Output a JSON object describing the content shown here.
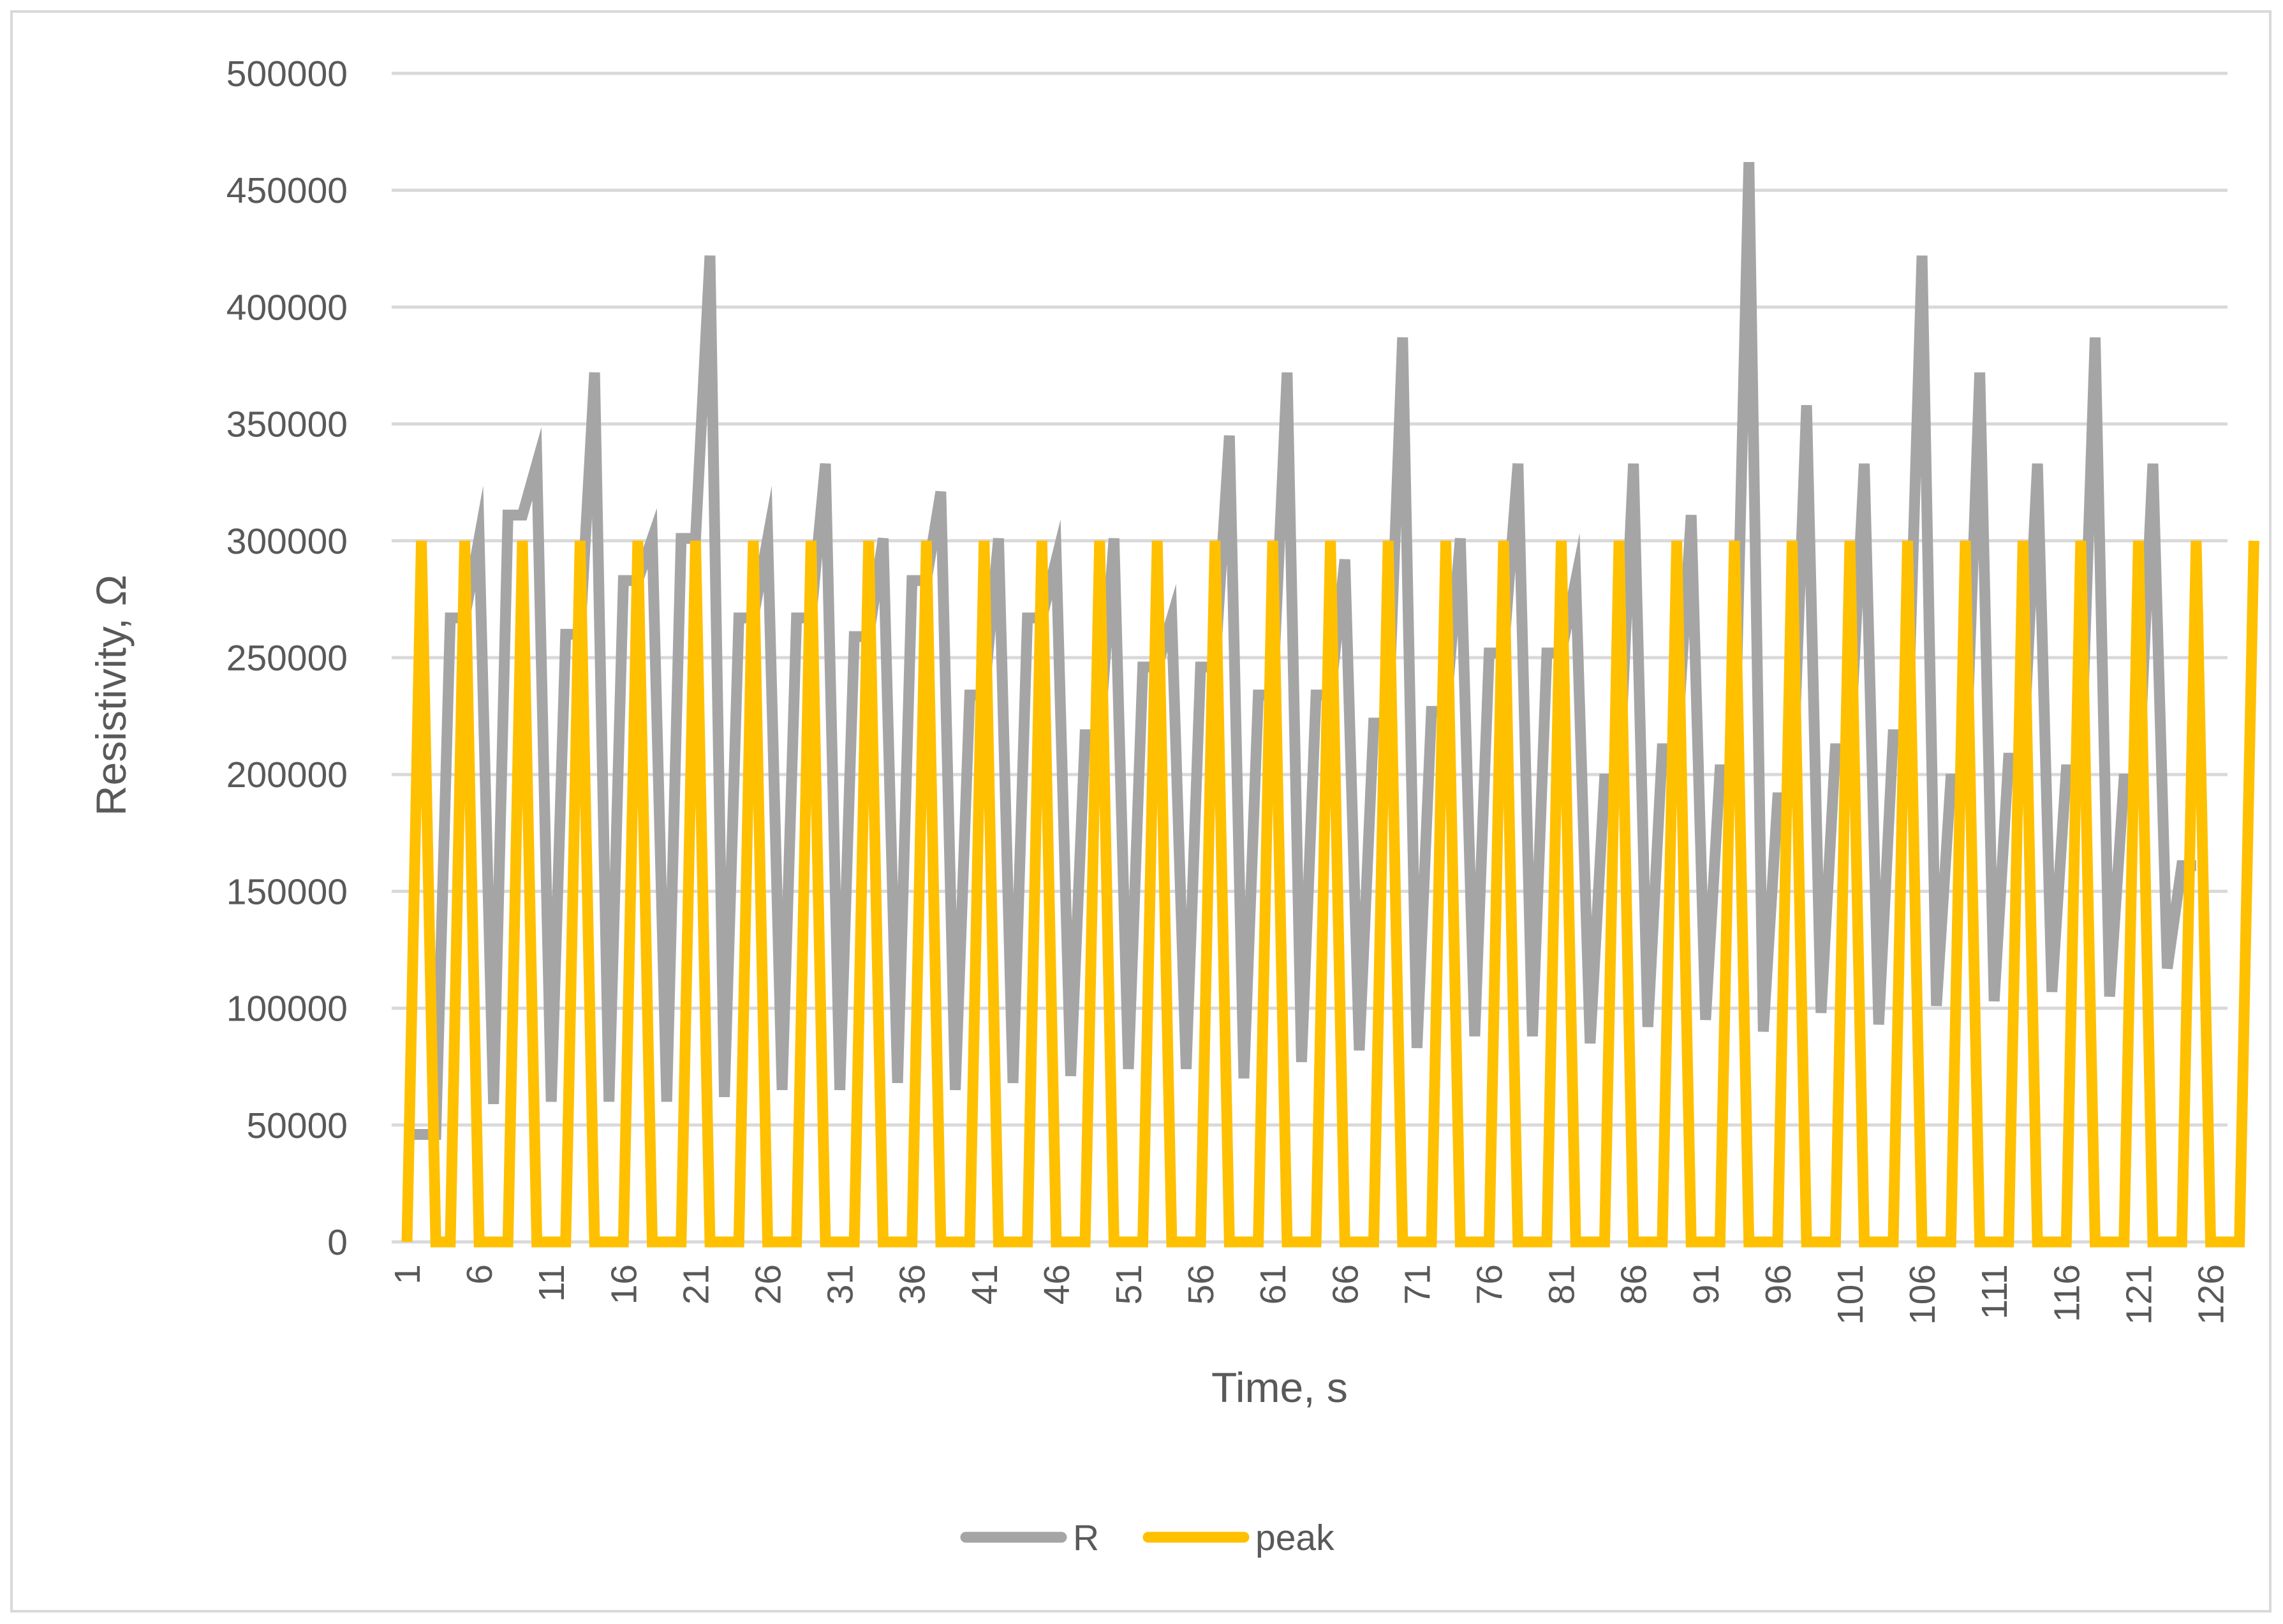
{
  "chart_data": {
    "type": "line",
    "title": "",
    "xlabel": "Time, s",
    "ylabel": "Resistivity, Ω",
    "ylim": [
      0,
      500000
    ],
    "yticks": [
      0,
      50000,
      100000,
      150000,
      200000,
      250000,
      300000,
      350000,
      400000,
      450000,
      500000
    ],
    "xlim": [
      1,
      126
    ],
    "xticks": [
      1,
      6,
      11,
      16,
      21,
      26,
      31,
      36,
      41,
      46,
      51,
      56,
      61,
      66,
      71,
      76,
      81,
      86,
      91,
      96,
      101,
      106,
      111,
      116,
      121,
      126
    ],
    "grid": true,
    "legend_position": "bottom",
    "series": [
      {
        "name": "R",
        "color": "#a5a5a5",
        "values": [
          46000,
          46000,
          46000,
          267000,
          267000,
          301000,
          59000,
          311000,
          311000,
          333000,
          60000,
          260000,
          260000,
          372000,
          60000,
          283000,
          283000,
          301000,
          60000,
          301000,
          301000,
          422000,
          62000,
          267000,
          267000,
          301000,
          65000,
          267000,
          267000,
          333000,
          65000,
          259000,
          259000,
          301000,
          68000,
          283000,
          283000,
          321000,
          65000,
          234000,
          234000,
          301000,
          68000,
          267000,
          267000,
          292000,
          71000,
          217000,
          217000,
          301000,
          74000,
          246000,
          246000,
          267000,
          74000,
          246000,
          246000,
          345000,
          70000,
          234000,
          234000,
          372000,
          77000,
          234000,
          234000,
          292000,
          82000,
          222000,
          222000,
          387000,
          83000,
          227000,
          227000,
          301000,
          88000,
          252000,
          252000,
          333000,
          88000,
          252000,
          252000,
          283000,
          85000,
          198000,
          198000,
          333000,
          92000,
          211000,
          211000,
          311000,
          95000,
          202000,
          202000,
          462000,
          90000,
          190000,
          190000,
          358000,
          98000,
          211000,
          211000,
          333000,
          93000,
          217000,
          217000,
          422000,
          101000,
          198000,
          198000,
          372000,
          103000,
          207000,
          207000,
          333000,
          107000,
          202000,
          202000,
          387000,
          105000,
          198000,
          198000,
          333000,
          117000,
          161000,
          161000
        ]
      },
      {
        "name": "peak",
        "color": "#ffc000",
        "values": [
          0,
          300000,
          0,
          0,
          300000,
          0,
          0,
          0,
          300000,
          0,
          0,
          0,
          300000,
          0,
          0,
          0,
          300000,
          0,
          0,
          0,
          300000,
          0,
          0,
          0,
          300000,
          0,
          0,
          0,
          300000,
          0,
          0,
          0,
          300000,
          0,
          0,
          0,
          300000,
          0,
          0,
          0,
          300000,
          0,
          0,
          0,
          300000,
          0,
          0,
          0,
          300000,
          0,
          0,
          0,
          300000,
          0,
          0,
          0,
          300000,
          0,
          0,
          0,
          300000,
          0,
          0,
          0,
          300000,
          0,
          0,
          0,
          300000,
          0,
          0,
          0,
          300000,
          0,
          0,
          0,
          300000,
          0,
          0,
          0,
          300000,
          0,
          0,
          0,
          300000,
          0,
          0,
          0,
          300000,
          0,
          0,
          0,
          300000,
          0,
          0,
          0,
          300000,
          0,
          0,
          0,
          300000,
          0,
          0,
          0,
          300000,
          0,
          0,
          0,
          300000,
          0,
          0,
          0,
          300000,
          0,
          0,
          0,
          300000,
          0,
          0,
          0,
          300000,
          0,
          0,
          0,
          300000,
          0,
          0,
          0,
          300000
        ]
      }
    ]
  }
}
